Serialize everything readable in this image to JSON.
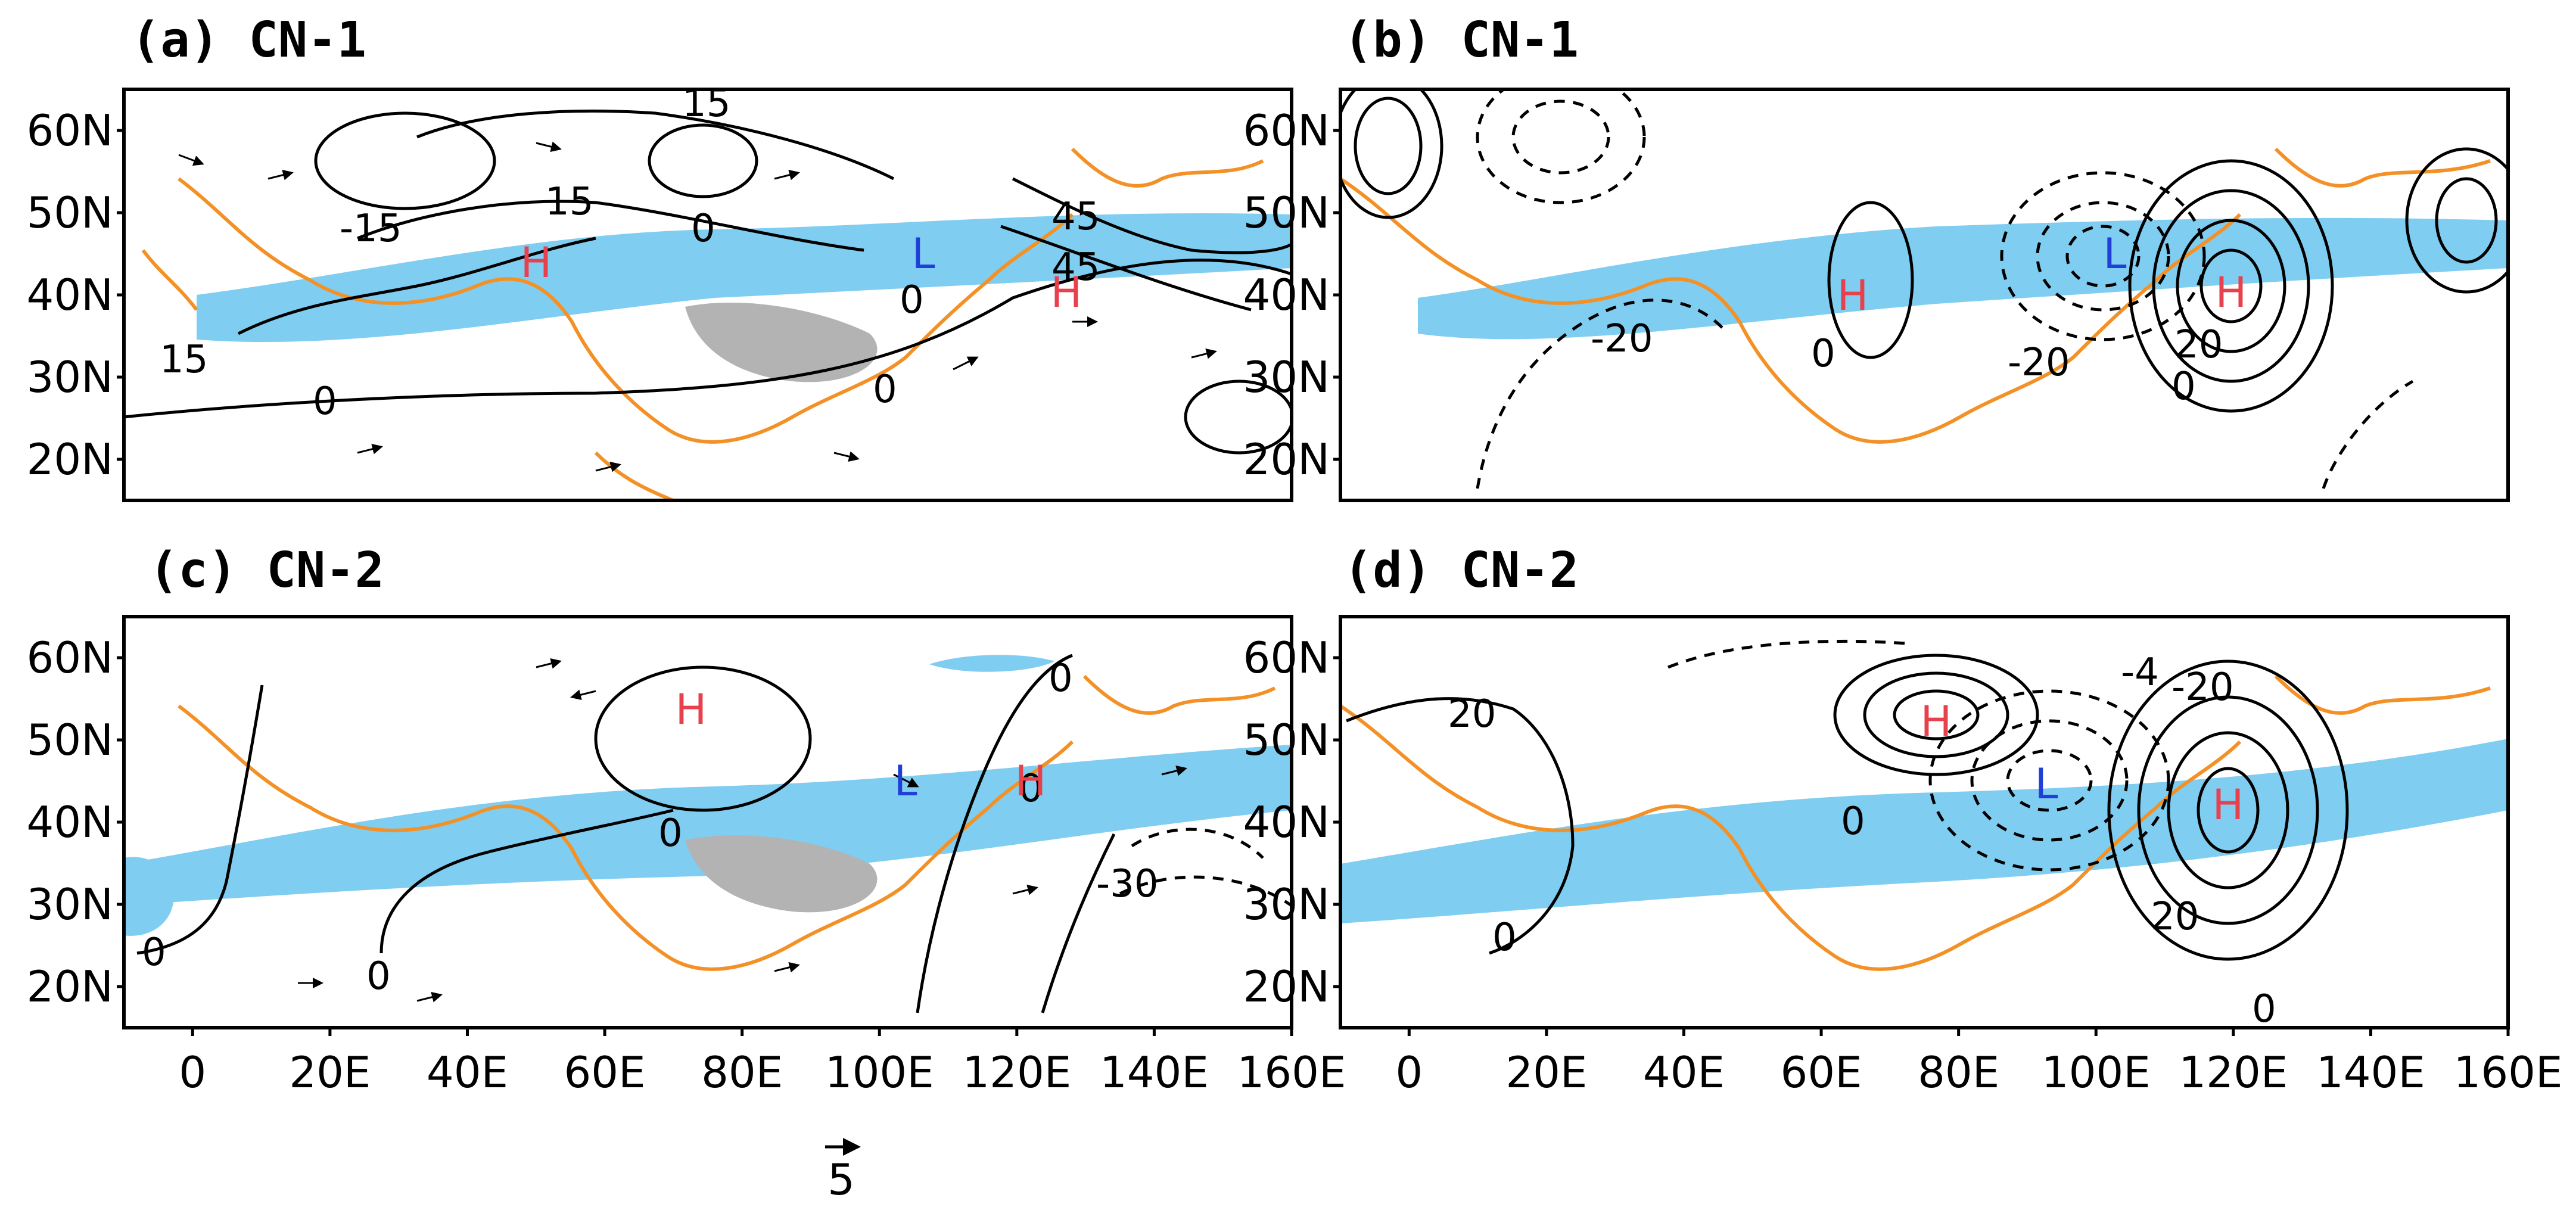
{
  "panels": [
    {
      "title": "(a) CN-1",
      "contour_labels": [
        "15",
        "15",
        "-15",
        "0",
        "15",
        "0",
        "0",
        "0",
        "45",
        "45"
      ],
      "centers": [
        {
          "label": "H",
          "color": "#e8414e"
        },
        {
          "label": "L",
          "color": "#1f3fd8"
        },
        {
          "label": "H",
          "color": "#e8414e"
        }
      ]
    },
    {
      "title": "(b) CN-1",
      "contour_labels": [
        "-20",
        "0",
        "-20",
        "20",
        "0"
      ],
      "centers": [
        {
          "label": "H",
          "color": "#e8414e"
        },
        {
          "label": "L",
          "color": "#1f3fd8"
        },
        {
          "label": "H",
          "color": "#e8414e"
        }
      ]
    },
    {
      "title": "(c) CN-2",
      "contour_labels": [
        "0",
        "0",
        "0",
        "0",
        "0",
        "-30"
      ],
      "centers": [
        {
          "label": "H",
          "color": "#e8414e"
        },
        {
          "label": "L",
          "color": "#1f3fd8"
        },
        {
          "label": "H",
          "color": "#e8414e"
        }
      ]
    },
    {
      "title": "(d) CN-2",
      "contour_labels": [
        "20",
        "0",
        "-4",
        "-20",
        "20",
        "0",
        "0"
      ],
      "centers": [
        {
          "label": "H",
          "color": "#e8414e"
        },
        {
          "label": "L",
          "color": "#1f3fd8"
        },
        {
          "label": "H",
          "color": "#e8414e"
        }
      ]
    }
  ],
  "lat_ticks": [
    "60N",
    "50N",
    "40N",
    "30N",
    "20N"
  ],
  "lon_ticks": [
    "0",
    "20E",
    "40E",
    "60E",
    "80E",
    "100E",
    "120E",
    "140E",
    "160E"
  ],
  "vector_reference": "5",
  "colors": {
    "coastline": "#f39126",
    "jet": "#7fcdf0",
    "plateau": "#b3b3b3",
    "contour": "#000000"
  }
}
